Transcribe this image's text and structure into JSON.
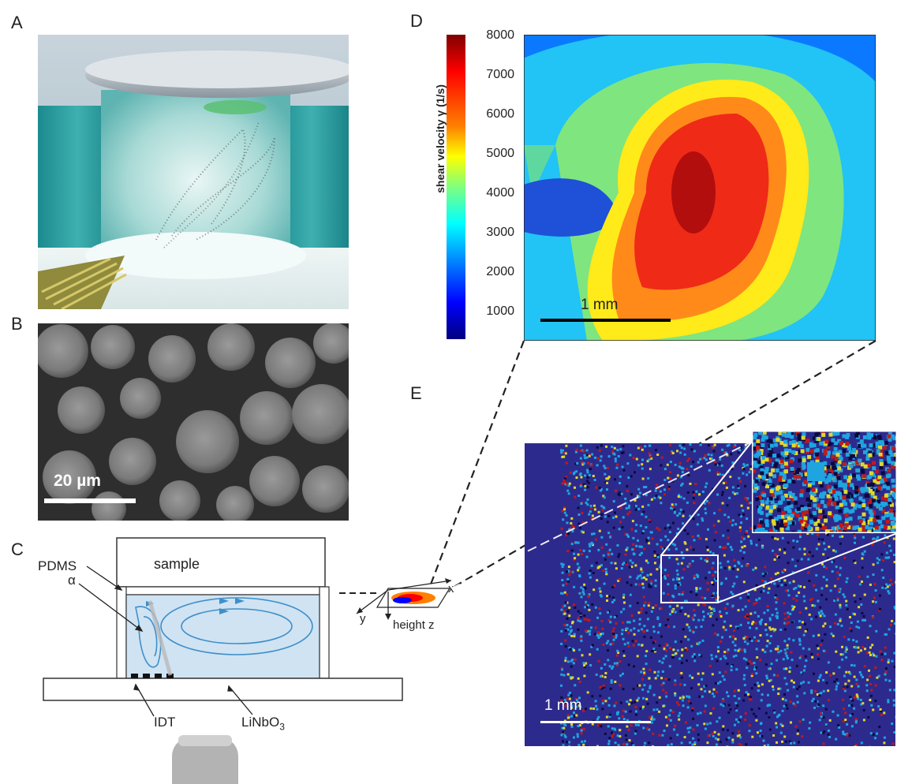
{
  "panels": {
    "a": {
      "label": "A"
    },
    "b": {
      "label": "B",
      "scalebar": "20 µm"
    },
    "c": {
      "label": "C",
      "sample": "sample",
      "pdms": "PDMS",
      "alpha": "α",
      "idt": "IDT",
      "substrate": "LiNbO",
      "substrate_sub": "3",
      "axis_x": "x",
      "axis_y": "y",
      "axis_z": "height z"
    },
    "d": {
      "label": "D",
      "scalebar": "1 mm"
    },
    "e": {
      "label": "E",
      "scalebar": "1 mm"
    }
  },
  "colorbar": {
    "title": "shear velocity γ (1/s)",
    "ticks": [
      "8000",
      "7000",
      "6000",
      "5000",
      "4000",
      "3000",
      "2000",
      "1000"
    ]
  },
  "colors": {
    "jet": [
      "#7f0000",
      "#ff0000",
      "#ff7f00",
      "#ffff00",
      "#7fff7f",
      "#00ffff",
      "#007fff",
      "#0000ff",
      "#00007f"
    ],
    "flow": "#3f8fc8",
    "chamber": "#cfe3f3"
  }
}
